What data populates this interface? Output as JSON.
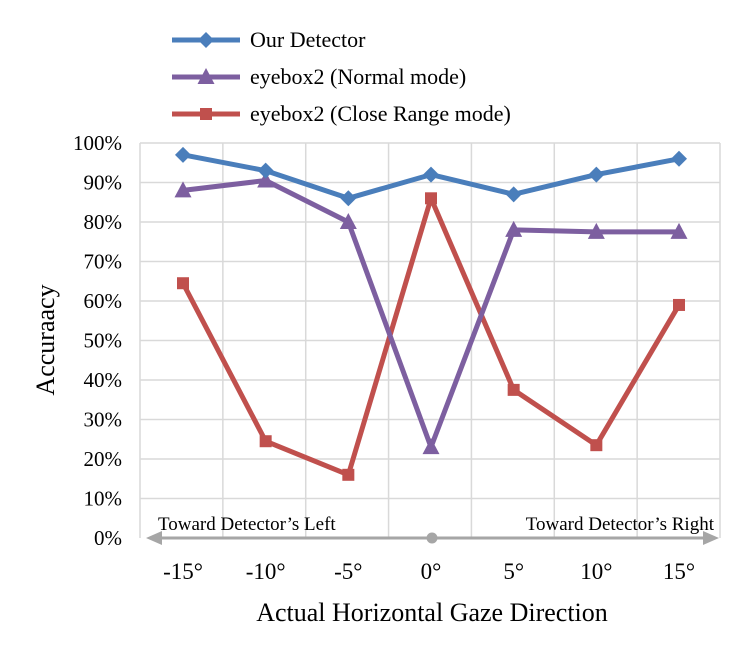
{
  "chart_data": {
    "type": "line",
    "categories": [
      "-15°",
      "-10°",
      "-5°",
      "0°",
      "5°",
      "10°",
      "15°"
    ],
    "series": [
      {
        "name": "Our Detector",
        "values": [
          97,
          93,
          86,
          92,
          87,
          92,
          96
        ],
        "color": "#4a7ebb",
        "marker": "diamond"
      },
      {
        "name": "eyebox2 (Normal mode)",
        "values": [
          88,
          90.5,
          80,
          23,
          78,
          77.5,
          77.5
        ],
        "color": "#7d5fa0",
        "marker": "triangle"
      },
      {
        "name": "eyebox2 (Close Range mode)",
        "values": [
          64.5,
          24.5,
          16,
          86,
          37.5,
          23.5,
          59
        ],
        "color": "#c0504d",
        "marker": "square"
      }
    ],
    "y_ticks": [
      "0%",
      "10%",
      "20%",
      "30%",
      "40%",
      "50%",
      "60%",
      "70%",
      "80%",
      "90%",
      "100%"
    ],
    "ylim": [
      0,
      100
    ],
    "ylabel": "Accuraacy",
    "xlabel": "Actual Horizontal Gaze Direction",
    "grid": true,
    "legend_position": "top",
    "annotations": {
      "left": "Toward Detector’s Left",
      "right": "Toward Detector’s Right"
    }
  }
}
